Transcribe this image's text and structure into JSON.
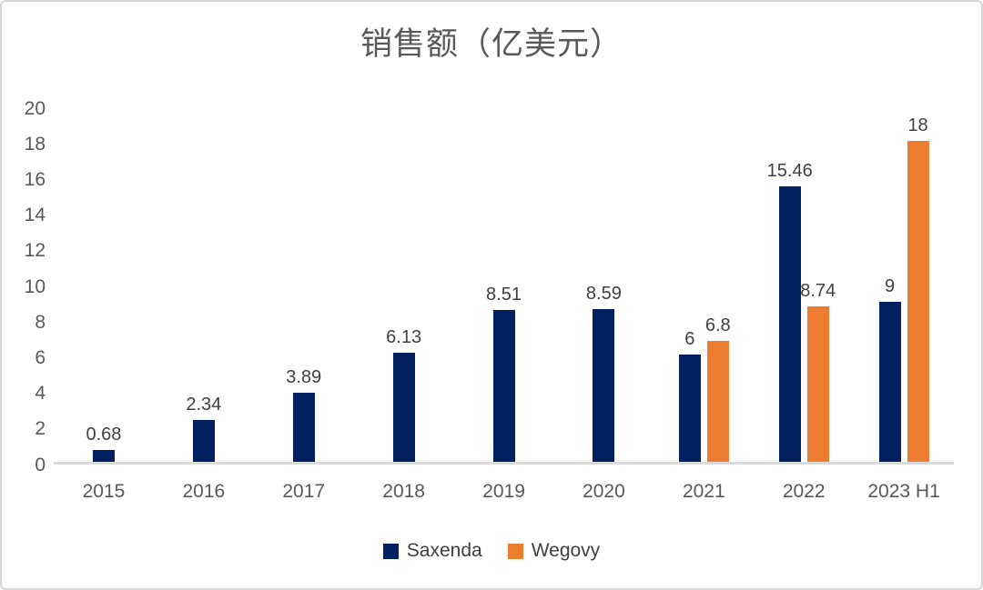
{
  "title": "销售额（亿美元）",
  "colors": {
    "saxenda": "#002060",
    "wegovy": "#ED7D31",
    "axis_text": "#595959",
    "value_text": "#404040",
    "axis_line": "#D9D9D9"
  },
  "legend": [
    {
      "label": "Saxenda",
      "color": "#002060"
    },
    {
      "label": "Wegovy",
      "color": "#ED7D31"
    }
  ],
  "chart_data": {
    "type": "bar",
    "title": "销售额（亿美元）",
    "categories": [
      "2015",
      "2016",
      "2017",
      "2018",
      "2019",
      "2020",
      "2021",
      "2022",
      "2023 H1"
    ],
    "series": [
      {
        "name": "Saxenda",
        "color": "#002060",
        "values": [
          0.68,
          2.34,
          3.89,
          6.13,
          8.51,
          8.59,
          6,
          15.46,
          9
        ],
        "labels": [
          "0.68",
          "2.34",
          "3.89",
          "6.13",
          "8.51",
          "8.59",
          "6",
          "15.46",
          "9"
        ]
      },
      {
        "name": "Wegovy",
        "color": "#ED7D31",
        "values": [
          null,
          null,
          null,
          null,
          null,
          null,
          6.8,
          8.74,
          18
        ],
        "labels": [
          null,
          null,
          null,
          null,
          null,
          null,
          "6.8",
          "8.74",
          "18"
        ]
      }
    ],
    "xlabel": "",
    "ylabel": "",
    "ylim": [
      0,
      20
    ],
    "y_ticks": [
      0,
      2,
      4,
      6,
      8,
      10,
      12,
      14,
      16,
      18,
      20
    ],
    "grid": false,
    "legend_position": "bottom"
  }
}
